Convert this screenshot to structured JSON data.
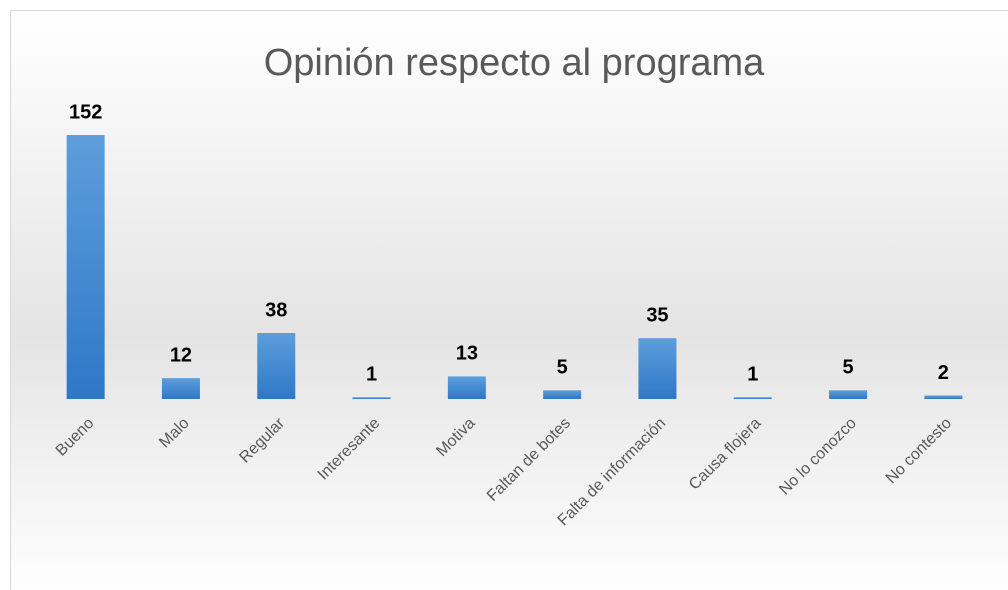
{
  "chart_data": {
    "type": "bar",
    "title": "Opinión respecto al programa",
    "categories": [
      "Bueno",
      "Malo",
      "Regular",
      "Interesante",
      "Motiva",
      "Faltan de botes",
      "Falta de información",
      "Causa flojera",
      "No lo conozco",
      "No  contesto"
    ],
    "values": [
      152,
      12,
      38,
      1,
      13,
      5,
      35,
      1,
      5,
      2
    ],
    "color": "#4a8fd6"
  }
}
